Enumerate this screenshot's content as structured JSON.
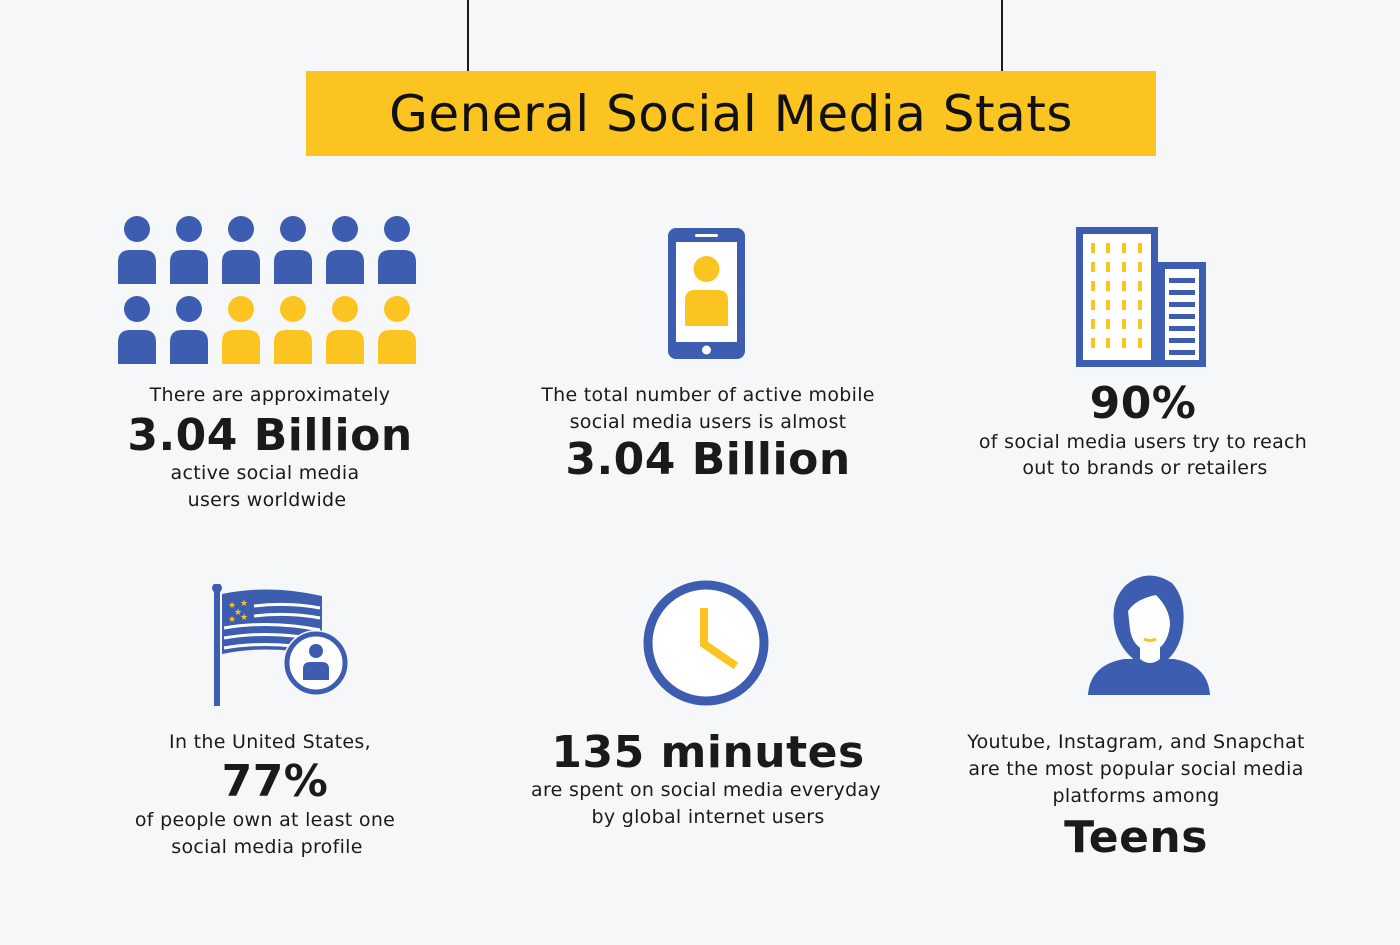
{
  "title": "General Social Media Stats",
  "colors": {
    "banner": "#fbc421",
    "blue": "#3d5db1",
    "yellow": "#fbc421",
    "background": "#f6f7f9"
  },
  "stats": [
    {
      "icon": "people-grid-icon",
      "lead": "There are approximately",
      "value": "3.04 Billion",
      "tail_1": "active social media",
      "tail_2": "users worldwide"
    },
    {
      "icon": "smartphone-user-icon",
      "lead_1": "The total number of active mobile",
      "lead_2": "social media users is almost",
      "value": "3.04 Billion"
    },
    {
      "icon": "buildings-icon",
      "value": "90%",
      "tail_1": "of social media users try to reach",
      "tail_2": "out to brands or retailers"
    },
    {
      "icon": "us-flag-user-icon",
      "lead": "In the United States,",
      "value": "77%",
      "tail_1": "of people own at least one",
      "tail_2": "social media profile"
    },
    {
      "icon": "clock-icon",
      "value": "135 minutes",
      "tail_1": "are spent on social media everyday",
      "tail_2": "by global internet users"
    },
    {
      "icon": "woman-avatar-icon",
      "lead_1": "Youtube, Instagram, and Snapchat",
      "lead_2": "are the most popular social media",
      "lead_3": "platforms among",
      "value": "Teens"
    }
  ]
}
